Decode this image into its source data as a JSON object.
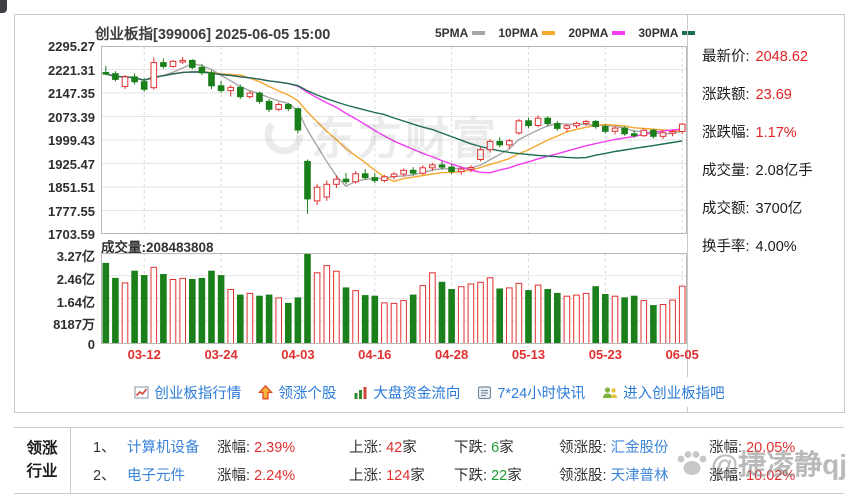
{
  "header": {
    "title": "创业板指[399006] 2025-06-05 15:00"
  },
  "legend": [
    {
      "label": "5PMA",
      "color": "#a6a6a6"
    },
    {
      "label": "10PMA",
      "color": "#f5a72e"
    },
    {
      "label": "20PMA",
      "color": "#f23cf2"
    },
    {
      "label": "30PMA",
      "color": "#1e6f52"
    }
  ],
  "stats": [
    {
      "label": "最新价:",
      "value": "2048.62",
      "color": "#e32222"
    },
    {
      "label": "涨跌额:",
      "value": "23.69",
      "color": "#e32222"
    },
    {
      "label": "涨跌幅:",
      "value": "1.17%",
      "color": "#e32222"
    },
    {
      "label": "成交量:",
      "value": "2.08亿手",
      "color": "#1c1c1c"
    },
    {
      "label": "成交额:",
      "value": "3700亿",
      "color": "#1c1c1c"
    },
    {
      "label": "换手率:",
      "value": "4.00%",
      "color": "#1c1c1c"
    }
  ],
  "links": [
    {
      "icon": "line-chart-icon",
      "label": "创业板指行情"
    },
    {
      "icon": "up-arrow-icon",
      "label": "领涨个股"
    },
    {
      "icon": "bar-chart-icon",
      "label": "大盘资金流向"
    },
    {
      "icon": "news-icon",
      "label": "7*24小时快讯"
    },
    {
      "icon": "people-icon",
      "label": "进入创业板指吧"
    }
  ],
  "sector_table": {
    "header_lines": [
      "领涨",
      "行业"
    ],
    "rows": [
      {
        "rank": "1、",
        "sector": "计算机设备",
        "gain_label": "涨幅:",
        "gain": "2.39%",
        "up_label": "上涨:",
        "up_count": "42",
        "up_suffix": "家",
        "down_label": "下跌:",
        "down_count": "6",
        "down_suffix": "家",
        "leader_label": "领涨股:",
        "leader": "汇金股份",
        "leader_gain_label": "涨幅:",
        "leader_gain": "20.05%"
      },
      {
        "rank": "2、",
        "sector": "电子元件",
        "gain_label": "涨幅:",
        "gain": "2.24%",
        "up_label": "上涨:",
        "up_count": "124",
        "up_suffix": "家",
        "down_label": "下跌:",
        "down_count": "22",
        "down_suffix": "家",
        "leader_label": "领涨股:",
        "leader": "天津普林",
        "leader_gain_label": "涨幅:",
        "leader_gain": "10.02%"
      }
    ]
  },
  "watermarks": {
    "chart": "东方财富",
    "photo": "@捷凌静qj"
  },
  "chart_data": [
    {
      "type": "candlestick",
      "title": "创业板指[399006] 2025-06-05 15:00",
      "ylim": [
        1703.59,
        2295.27
      ],
      "y_ticks": [
        2295.27,
        2221.31,
        2147.35,
        2073.39,
        1999.43,
        1925.47,
        1851.51,
        1777.55,
        1703.59
      ],
      "x_tick_labels": [
        "03-12",
        "03-24",
        "04-03",
        "04-16",
        "04-28",
        "05-13",
        "05-23",
        "06-05"
      ],
      "x_tick_indices": [
        4,
        12,
        20,
        28,
        36,
        44,
        52,
        60
      ],
      "up_color": "#e23131",
      "down_color": "#1b7f1b",
      "ma_series": [
        {
          "name": "5PMA",
          "window": 5,
          "color": "#a6a6a6"
        },
        {
          "name": "10PMA",
          "window": 10,
          "color": "#f5a72e"
        },
        {
          "name": "20PMA",
          "window": 20,
          "color": "#f23cf2"
        },
        {
          "name": "30PMA",
          "window": 30,
          "color": "#1e6f52"
        }
      ],
      "dates": [
        "03-06",
        "03-07",
        "03-10",
        "03-11",
        "03-12",
        "03-13",
        "03-14",
        "03-17",
        "03-18",
        "03-19",
        "03-20",
        "03-21",
        "03-24",
        "03-25",
        "03-26",
        "03-27",
        "03-28",
        "03-31",
        "04-01",
        "04-02",
        "04-03",
        "04-07",
        "04-08",
        "04-09",
        "04-10",
        "04-11",
        "04-14",
        "04-15",
        "04-16",
        "04-17",
        "04-18",
        "04-21",
        "04-22",
        "04-23",
        "04-24",
        "04-25",
        "04-28",
        "04-29",
        "04-30",
        "05-06",
        "05-07",
        "05-08",
        "05-09",
        "05-12",
        "05-13",
        "05-14",
        "05-15",
        "05-16",
        "05-19",
        "05-20",
        "05-21",
        "05-22",
        "05-23",
        "05-26",
        "05-27",
        "05-28",
        "05-29",
        "05-30",
        "06-03",
        "06-04",
        "06-05"
      ],
      "ohlc": [
        [
          2212,
          2233,
          2203,
          2208
        ],
        [
          2208,
          2216,
          2184,
          2190
        ],
        [
          2168,
          2204,
          2160,
          2198
        ],
        [
          2198,
          2209,
          2174,
          2183
        ],
        [
          2183,
          2194,
          2151,
          2159
        ],
        [
          2164,
          2259,
          2158,
          2243
        ],
        [
          2243,
          2256,
          2224,
          2231
        ],
        [
          2231,
          2251,
          2227,
          2247
        ],
        [
          2247,
          2261,
          2239,
          2250
        ],
        [
          2250,
          2254,
          2222,
          2228
        ],
        [
          2228,
          2239,
          2204,
          2211
        ],
        [
          2211,
          2218,
          2160,
          2170
        ],
        [
          2170,
          2186,
          2148,
          2155
        ],
        [
          2155,
          2172,
          2136,
          2165
        ],
        [
          2165,
          2174,
          2128,
          2136
        ],
        [
          2136,
          2154,
          2130,
          2147
        ],
        [
          2147,
          2151,
          2114,
          2121
        ],
        [
          2121,
          2128,
          2088,
          2096
        ],
        [
          2096,
          2118,
          2090,
          2111
        ],
        [
          2111,
          2116,
          2090,
          2098
        ],
        [
          2098,
          2101,
          2020,
          2031
        ],
        [
          1932,
          1938,
          1767,
          1814
        ],
        [
          1808,
          1862,
          1795,
          1851
        ],
        [
          1820,
          1872,
          1808,
          1860
        ],
        [
          1860,
          1888,
          1848,
          1876
        ],
        [
          1876,
          1896,
          1860,
          1868
        ],
        [
          1868,
          1902,
          1862,
          1893
        ],
        [
          1893,
          1908,
          1874,
          1881
        ],
        [
          1881,
          1895,
          1864,
          1872
        ],
        [
          1872,
          1890,
          1866,
          1884
        ],
        [
          1884,
          1898,
          1876,
          1892
        ],
        [
          1892,
          1910,
          1884,
          1904
        ],
        [
          1904,
          1914,
          1888,
          1895
        ],
        [
          1895,
          1920,
          1890,
          1912
        ],
        [
          1912,
          1928,
          1902,
          1921
        ],
        [
          1921,
          1932,
          1906,
          1914
        ],
        [
          1914,
          1922,
          1892,
          1900
        ],
        [
          1900,
          1915,
          1890,
          1908
        ],
        [
          1908,
          1920,
          1898,
          1913
        ],
        [
          1938,
          1976,
          1932,
          1969
        ],
        [
          1969,
          2002,
          1960,
          1995
        ],
        [
          1995,
          2008,
          1976,
          1984
        ],
        [
          1984,
          2003,
          1972,
          1997
        ],
        [
          2022,
          2066,
          2016,
          2060
        ],
        [
          2060,
          2070,
          2036,
          2045
        ],
        [
          2045,
          2077,
          2040,
          2068
        ],
        [
          2068,
          2074,
          2043,
          2051
        ],
        [
          2051,
          2059,
          2028,
          2036
        ],
        [
          2036,
          2050,
          2026,
          2044
        ],
        [
          2044,
          2057,
          2037,
          2052
        ],
        [
          2052,
          2063,
          2044,
          2058
        ],
        [
          2058,
          2062,
          2035,
          2042
        ],
        [
          2042,
          2049,
          2020,
          2027
        ],
        [
          2027,
          2043,
          2017,
          2037
        ],
        [
          2037,
          2042,
          2013,
          2019
        ],
        [
          2019,
          2030,
          2007,
          2013
        ],
        [
          2013,
          2036,
          2009,
          2030
        ],
        [
          2030,
          2034,
          2004,
          2011
        ],
        [
          2011,
          2029,
          2003,
          2022
        ],
        [
          2022,
          2032,
          2011,
          2026
        ],
        [
          2026,
          2053,
          2019,
          2049
        ]
      ]
    },
    {
      "type": "bar",
      "label": "成交量:208483808",
      "last_volume": 208483808,
      "y_tick_labels": [
        "3.27亿",
        "2.46亿",
        "1.64亿",
        "8187万",
        "0"
      ],
      "y_max_yi": 3.274,
      "values_yi": [
        2.9,
        2.36,
        2.2,
        2.62,
        2.46,
        2.76,
        2.5,
        2.32,
        2.36,
        2.32,
        2.36,
        2.62,
        2.46,
        1.96,
        1.76,
        1.82,
        1.72,
        1.76,
        1.66,
        1.46,
        1.66,
        3.27,
        2.56,
        2.82,
        2.62,
        2.02,
        1.92,
        1.74,
        1.72,
        1.48,
        1.46,
        1.56,
        1.76,
        2.1,
        2.56,
        2.22,
        1.96,
        2.06,
        2.16,
        2.22,
        2.38,
        1.98,
        2.02,
        2.18,
        1.92,
        2.12,
        1.96,
        1.82,
        1.72,
        1.76,
        1.82,
        2.06,
        1.78,
        1.72,
        1.66,
        1.72,
        1.56,
        1.38,
        1.42,
        1.58,
        2.08
      ]
    }
  ]
}
